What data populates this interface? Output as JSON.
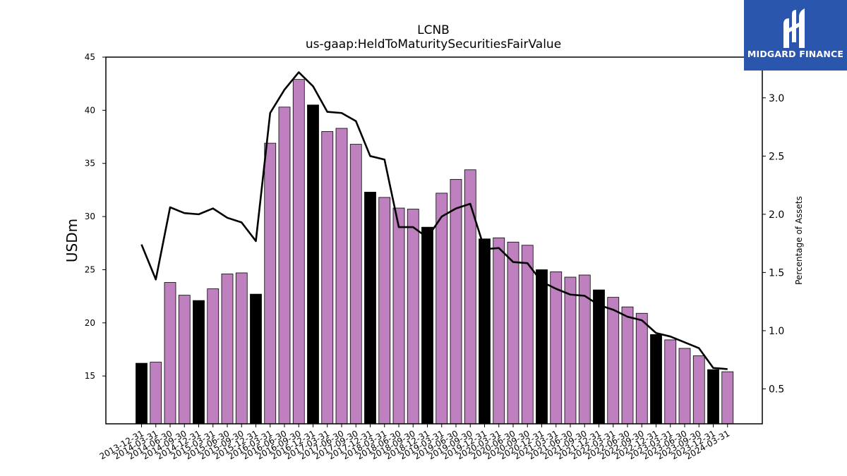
{
  "chart_data": {
    "type": "bar",
    "title": "LCNB",
    "subtitle": "us-gaap:HeldToMaturitySecuritiesFairValue",
    "ylabel": "USDm",
    "ylabel_right": "Percentage of Assets",
    "ylim": [
      10.5,
      45
    ],
    "ylim_right": [
      0.2,
      3.35
    ],
    "yticks": [
      15,
      20,
      25,
      30,
      35,
      40,
      45
    ],
    "yticks_right": [
      "0.5",
      "1.0",
      "1.5",
      "2.0",
      "2.5",
      "3.0"
    ],
    "categories": [
      "2013-12-31",
      "2014-03-31",
      "2014-06-30",
      "2014-09-30",
      "2014-12-31",
      "2015-03-31",
      "2015-06-30",
      "2015-09-30",
      "2015-12-31",
      "2016-03-31",
      "2016-06-30",
      "2016-09-30",
      "2016-12-31",
      "2017-03-31",
      "2017-06-30",
      "2017-09-30",
      "2017-12-31",
      "2018-03-31",
      "2018-06-30",
      "2018-09-30",
      "2018-12-31",
      "2019-03-31",
      "2019-06-30",
      "2019-09-30",
      "2019-12-31",
      "2020-03-31",
      "2020-06-30",
      "2020-09-30",
      "2020-12-31",
      "2021-03-31",
      "2021-06-30",
      "2021-09-30",
      "2021-12-31",
      "2022-03-31",
      "2022-06-30",
      "2022-09-30",
      "2022-12-31",
      "2023-03-31",
      "2023-06-30",
      "2023-09-30",
      "2023-12-31",
      "2024-03-31"
    ],
    "series": [
      {
        "values": [
          16.2,
          16.3,
          23.8,
          22.6,
          22.1,
          23.2,
          24.6,
          24.7,
          22.7,
          36.9,
          40.3,
          42.9,
          40.5,
          38.0,
          38.3,
          36.8,
          32.3,
          31.8,
          30.8,
          30.7,
          29.0,
          32.2,
          33.5,
          34.4,
          27.9,
          28.0,
          27.6,
          27.3,
          25.0,
          24.8,
          24.3,
          24.5,
          23.1,
          22.4,
          21.5,
          20.9,
          18.9,
          18.4,
          17.6,
          16.9,
          15.6,
          15.4
        ],
        "highlight": [
          true,
          false,
          false,
          false,
          true,
          false,
          false,
          false,
          true,
          false,
          false,
          false,
          true,
          false,
          false,
          false,
          true,
          false,
          false,
          false,
          true,
          false,
          false,
          false,
          true,
          false,
          false,
          false,
          true,
          false,
          false,
          false,
          true,
          false,
          false,
          false,
          true,
          false,
          false,
          false,
          true,
          false
        ]
      },
      {
        "axis": "right",
        "type": "line",
        "values": [
          1.74,
          1.44,
          2.06,
          2.01,
          2.0,
          2.05,
          1.97,
          1.93,
          1.77,
          2.87,
          3.07,
          3.22,
          3.1,
          2.88,
          2.87,
          2.8,
          2.5,
          2.47,
          1.89,
          1.89,
          1.8,
          1.98,
          2.05,
          2.09,
          1.7,
          1.71,
          1.59,
          1.58,
          1.42,
          1.36,
          1.31,
          1.3,
          1.22,
          1.18,
          1.12,
          1.09,
          0.98,
          0.95,
          0.9,
          0.85,
          0.68,
          0.67
        ]
      }
    ],
    "colors": {
      "bar": "#bf80bf",
      "bar_highlight": "#000000",
      "line": "#000000"
    }
  },
  "logo": {
    "text": "MIDGARD FINANCE",
    "background": "#2a56ad"
  }
}
